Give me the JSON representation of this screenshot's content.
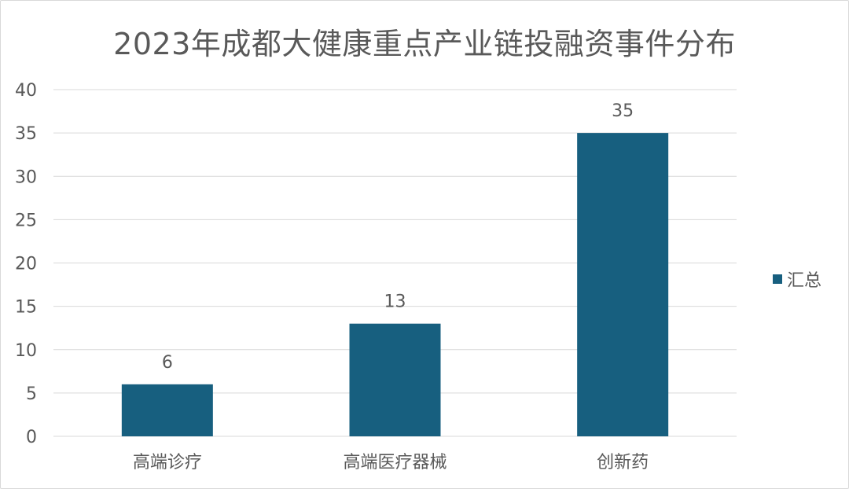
{
  "chart_data": {
    "type": "bar",
    "title": "2023年成都大健康重点产业链投融资事件分布",
    "categories": [
      "高端诊疗",
      "高端医疗器械",
      "创新药"
    ],
    "series": [
      {
        "name": "汇总",
        "values": [
          6,
          13,
          35
        ],
        "color": "#175f7f"
      }
    ],
    "ylim": [
      0,
      40
    ],
    "yticks": [
      0,
      5,
      10,
      15,
      20,
      25,
      30,
      35,
      40
    ],
    "grid": true,
    "data_labels": true,
    "legend_position": "right"
  },
  "colors": {
    "bar": "#175f7f",
    "grid": "#d9d9d9",
    "text": "#595959"
  }
}
